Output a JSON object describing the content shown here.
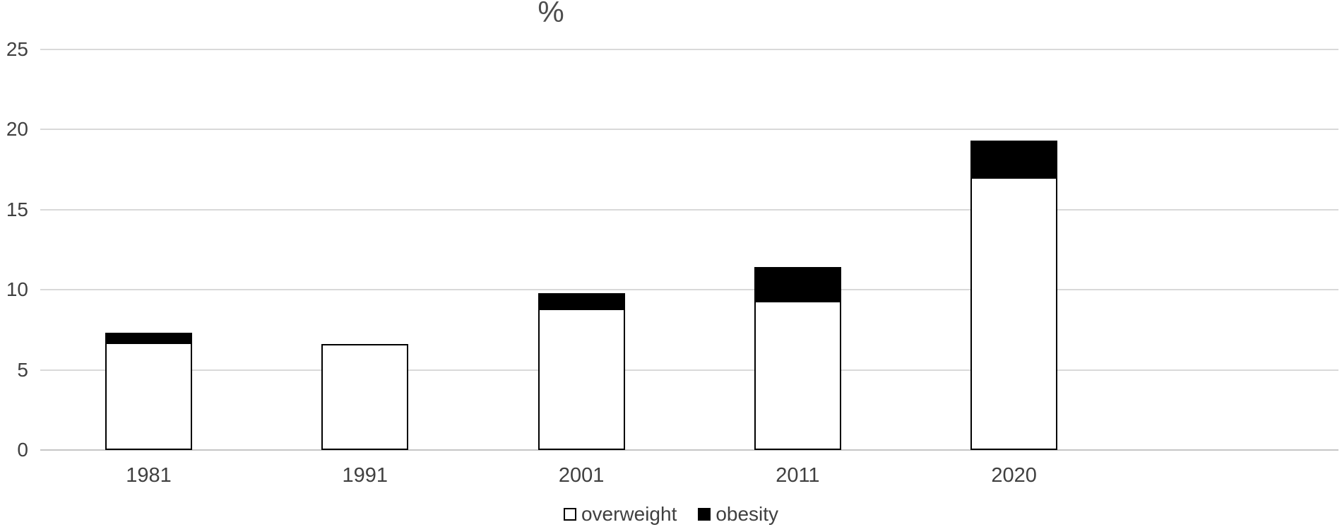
{
  "chart_data": {
    "type": "bar",
    "stacked": true,
    "title": "%",
    "categories": [
      "1981",
      "1991",
      "2001",
      "2011",
      "2020"
    ],
    "series": [
      {
        "name": "overweight",
        "color": "#ffffff",
        "values": [
          6.7,
          6.6,
          8.8,
          9.3,
          17.0
        ]
      },
      {
        "name": "obesity",
        "color": "#000000",
        "values": [
          0.6,
          0.0,
          1.0,
          2.1,
          2.3
        ]
      }
    ],
    "stack_totals": [
      7.3,
      6.6,
      9.8,
      11.4,
      19.3
    ],
    "xlabel": "",
    "ylabel": "",
    "ylim": [
      0,
      25
    ],
    "yticks": [
      0,
      5,
      10,
      15,
      20,
      25
    ],
    "grid": true,
    "legend_position": "bottom"
  },
  "colors": {
    "background": "#ffffff",
    "gridline": "#d9d9d9",
    "axis_line": "#c6c6c6",
    "text": "#404040",
    "bar_border": "#000000"
  }
}
